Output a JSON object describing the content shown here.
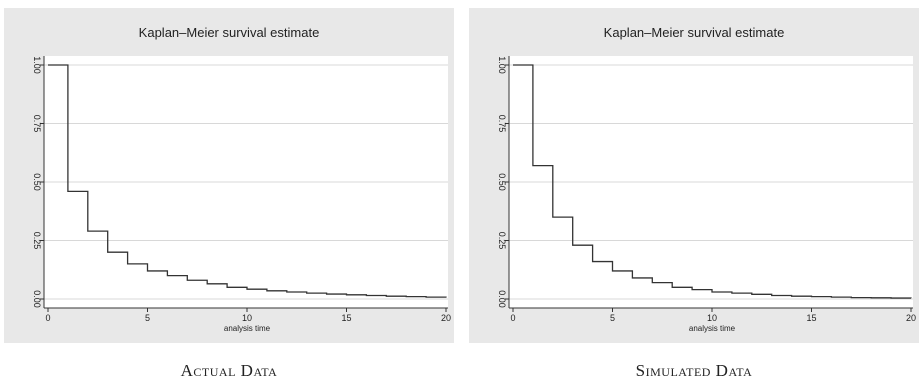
{
  "chart_data": [
    {
      "type": "line",
      "step": true,
      "title": "Kaplan–Meier survival estimate",
      "xlabel": "analysis time",
      "ylabel": "",
      "xlim": [
        0,
        20
      ],
      "ylim": [
        0,
        1
      ],
      "xticks": [
        0,
        5,
        10,
        15,
        20
      ],
      "yticks": [
        0.0,
        0.25,
        0.5,
        0.75,
        1.0
      ],
      "ytick_labels": [
        "0.00",
        "0.25",
        "0.50",
        "0.75",
        "1.00"
      ],
      "grid": true,
      "caption": "Actual Data",
      "x": [
        0,
        1,
        2,
        3,
        4,
        5,
        6,
        7,
        8,
        9,
        10,
        11,
        12,
        13,
        14,
        15,
        16,
        17,
        18,
        19,
        20
      ],
      "y": [
        1.0,
        0.46,
        0.29,
        0.2,
        0.15,
        0.12,
        0.1,
        0.08,
        0.065,
        0.05,
        0.042,
        0.035,
        0.03,
        0.025,
        0.021,
        0.018,
        0.015,
        0.012,
        0.01,
        0.008,
        0.006
      ]
    },
    {
      "type": "line",
      "step": true,
      "title": "Kaplan–Meier survival estimate",
      "xlabel": "analysis time",
      "ylabel": "",
      "xlim": [
        0,
        20
      ],
      "ylim": [
        0,
        1
      ],
      "xticks": [
        0,
        5,
        10,
        15,
        20
      ],
      "yticks": [
        0.0,
        0.25,
        0.5,
        0.75,
        1.0
      ],
      "ytick_labels": [
        "0.00",
        "0.25",
        "0.50",
        "0.75",
        "1.00"
      ],
      "grid": true,
      "caption": "Simulated Data",
      "x": [
        0,
        1,
        2,
        3,
        4,
        5,
        6,
        7,
        8,
        9,
        10,
        11,
        12,
        13,
        14,
        15,
        16,
        17,
        18,
        19,
        20
      ],
      "y": [
        1.0,
        0.57,
        0.35,
        0.23,
        0.16,
        0.12,
        0.09,
        0.07,
        0.05,
        0.04,
        0.03,
        0.025,
        0.02,
        0.015,
        0.012,
        0.01,
        0.008,
        0.006,
        0.005,
        0.004,
        0.003
      ]
    }
  ]
}
